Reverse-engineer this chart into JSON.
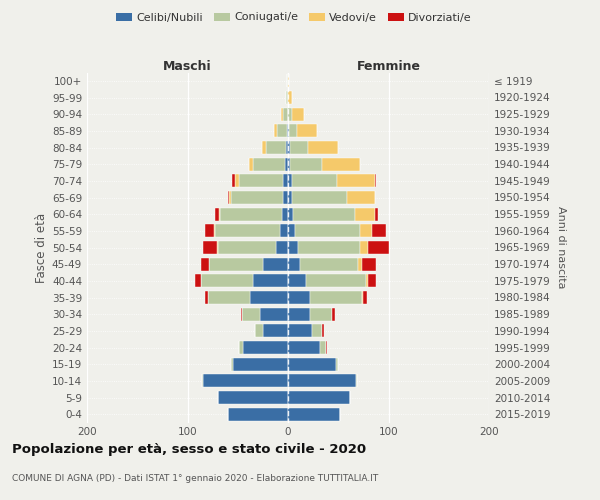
{
  "age_groups": [
    "0-4",
    "5-9",
    "10-14",
    "15-19",
    "20-24",
    "25-29",
    "30-34",
    "35-39",
    "40-44",
    "45-49",
    "50-54",
    "55-59",
    "60-64",
    "65-69",
    "70-74",
    "75-79",
    "80-84",
    "85-89",
    "90-94",
    "95-99",
    "100+"
  ],
  "birth_years": [
    "2015-2019",
    "2010-2014",
    "2005-2009",
    "2000-2004",
    "1995-1999",
    "1990-1994",
    "1985-1989",
    "1980-1984",
    "1975-1979",
    "1970-1974",
    "1965-1969",
    "1960-1964",
    "1955-1959",
    "1950-1954",
    "1945-1949",
    "1940-1944",
    "1935-1939",
    "1930-1934",
    "1925-1929",
    "1920-1924",
    "≤ 1919"
  ],
  "maschi": {
    "celibi": [
      60,
      70,
      85,
      55,
      45,
      25,
      28,
      38,
      35,
      25,
      12,
      8,
      6,
      5,
      5,
      3,
      2,
      1,
      0,
      0,
      0
    ],
    "coniugati": [
      0,
      0,
      1,
      2,
      4,
      8,
      18,
      42,
      52,
      54,
      58,
      65,
      62,
      52,
      44,
      32,
      20,
      10,
      5,
      2,
      1
    ],
    "vedovi": [
      0,
      0,
      0,
      0,
      0,
      0,
      0,
      0,
      0,
      0,
      1,
      1,
      1,
      2,
      4,
      4,
      4,
      3,
      2,
      0,
      0
    ],
    "divorziati": [
      0,
      0,
      0,
      0,
      0,
      0,
      1,
      3,
      6,
      8,
      14,
      9,
      4,
      1,
      3,
      0,
      0,
      0,
      0,
      0,
      0
    ]
  },
  "femmine": {
    "nubili": [
      52,
      62,
      68,
      48,
      32,
      24,
      22,
      22,
      18,
      12,
      10,
      7,
      5,
      4,
      4,
      2,
      2,
      1,
      0,
      0,
      0
    ],
    "coniugate": [
      0,
      0,
      1,
      2,
      6,
      10,
      22,
      52,
      60,
      58,
      62,
      65,
      62,
      55,
      45,
      32,
      18,
      8,
      4,
      0,
      0
    ],
    "vedove": [
      0,
      0,
      0,
      0,
      0,
      0,
      0,
      1,
      2,
      4,
      8,
      12,
      20,
      28,
      38,
      38,
      30,
      20,
      12,
      4,
      1
    ],
    "divorziate": [
      0,
      0,
      0,
      0,
      1,
      2,
      3,
      4,
      8,
      14,
      20,
      14,
      3,
      0,
      1,
      0,
      0,
      0,
      0,
      0,
      0
    ]
  },
  "colors": {
    "celibi_nubili": "#3a6ea5",
    "coniugati": "#b8c9a0",
    "vedovi": "#f5c96a",
    "divorziati": "#cc1111"
  },
  "xlim": 200,
  "title": "Popolazione per età, sesso e stato civile - 2020",
  "subtitle": "COMUNE DI AGNA (PD) - Dati ISTAT 1° gennaio 2020 - Elaborazione TUTTITALIA.IT",
  "ylabel_left": "Fasce di età",
  "ylabel_right": "Anni di nascita",
  "xlabel_left": "Maschi",
  "xlabel_right": "Femmine",
  "bg_color": "#f0f0eb",
  "grid_color": "#ffffff",
  "text_color": "#555555"
}
